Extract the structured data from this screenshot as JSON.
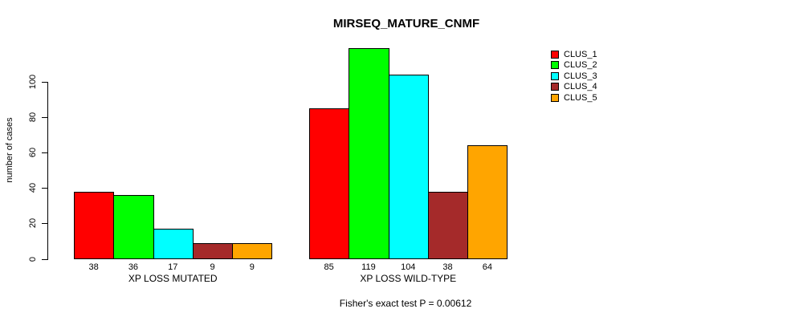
{
  "title": "MIRSEQ_MATURE_CNMF",
  "caption": "Fisher's exact test P = 0.00612",
  "chart_data": {
    "type": "bar",
    "title": "MIRSEQ_MATURE_CNMF",
    "categories": [
      "XP LOSS MUTATED",
      "XP LOSS WILD-TYPE"
    ],
    "series": [
      {
        "name": "CLUS_1",
        "color": "#FF0000",
        "values": [
          38,
          85
        ]
      },
      {
        "name": "CLUS_2",
        "color": "#00FF00",
        "values": [
          36,
          119
        ]
      },
      {
        "name": "CLUS_3",
        "color": "#00FFFF",
        "values": [
          17,
          104
        ]
      },
      {
        "name": "CLUS_4",
        "color": "#A52A2A",
        "values": [
          9,
          38
        ]
      },
      {
        "name": "CLUS_5",
        "color": "#FFA500",
        "values": [
          9,
          64
        ]
      }
    ],
    "xlabel": "",
    "ylabel": "number of cases",
    "yticks": [
      0,
      20,
      40,
      60,
      80,
      100
    ],
    "ylim": [
      0,
      100
    ],
    "grid": false,
    "legend_position": "top-right",
    "bar_value_labels_shown": true,
    "annotation": "Fisher's exact test P = 0.00612"
  }
}
